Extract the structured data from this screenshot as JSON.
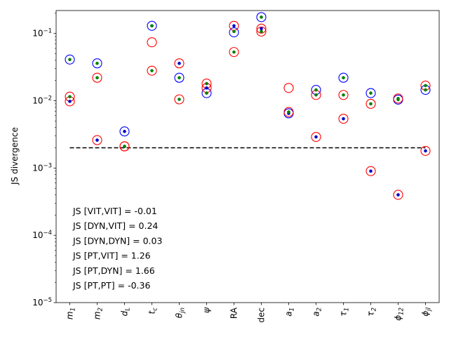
{
  "chart_data": {
    "type": "scatter",
    "ylabel": "JS divergence",
    "yscale": "log",
    "ylim": [
      1e-05,
      0.2
    ],
    "yticks": [
      {
        "value": 1e-05,
        "base": "10",
        "exp": "−5"
      },
      {
        "value": 0.0001,
        "base": "10",
        "exp": "−4"
      },
      {
        "value": 0.001,
        "base": "10",
        "exp": "−3"
      },
      {
        "value": 0.01,
        "base": "10",
        "exp": "−2"
      },
      {
        "value": 0.1,
        "base": "10",
        "exp": "−1"
      }
    ],
    "categories": [
      {
        "main": "m",
        "sub": "1"
      },
      {
        "main": "m",
        "sub": "2"
      },
      {
        "main": "d",
        "sub": "L"
      },
      {
        "main": "t",
        "sub": "c"
      },
      {
        "main": "θ",
        "sub": "jn"
      },
      {
        "main": "ψ",
        "sub": ""
      },
      {
        "main": "RA",
        "sub": "",
        "roman": true
      },
      {
        "main": "dec",
        "sub": "",
        "roman": true
      },
      {
        "main": "a",
        "sub": "1"
      },
      {
        "main": "a",
        "sub": "2"
      },
      {
        "main": "τ",
        "sub": "1"
      },
      {
        "main": "τ",
        "sub": "2"
      },
      {
        "main": "ϕ",
        "sub": "12"
      },
      {
        "main": "ϕ",
        "sub": "jl"
      }
    ],
    "threshold": {
      "value": 0.002,
      "style": "dashed",
      "color": "#000000"
    },
    "series": [
      {
        "marker": "open-circle",
        "color": "#0000ff",
        "values": [
          0.041,
          0.036,
          0.0035,
          0.13,
          0.022,
          0.013,
          0.104,
          0.175,
          0.0065,
          0.0145,
          0.022,
          0.013,
          0.0104,
          0.0145
        ]
      },
      {
        "marker": "open-circle",
        "color": "#ff0000",
        "values": [
          0.0115,
          0.022,
          0.0021,
          0.074,
          0.036,
          0.018,
          0.13,
          0.118,
          0.0155,
          0.0122,
          0.0122,
          0.009,
          0.0108,
          0.0168
        ]
      },
      {
        "marker": "open-circle",
        "color": "#ff0000",
        "values": [
          0.0098,
          0.0026,
          0.0021,
          0.028,
          0.0105,
          0.0155,
          0.053,
          0.107,
          0.0068,
          0.0029,
          0.0054,
          0.0009,
          0.0004,
          0.0018
        ]
      },
      {
        "marker": "dot",
        "color": "#0000cc",
        "values": [
          0.0098,
          0.0026,
          0.0035,
          0.13,
          0.036,
          0.0155,
          0.13,
          0.118,
          0.0065,
          0.0029,
          0.0054,
          0.0009,
          0.0004,
          0.0018
        ]
      },
      {
        "marker": "dot",
        "color": "#008000",
        "values": [
          0.0115,
          0.022,
          0.0021,
          0.028,
          0.022,
          0.018,
          0.107,
          0.175,
          0.0068,
          0.0122,
          0.0122,
          0.013,
          0.0108,
          0.0168
        ]
      },
      {
        "marker": "dot",
        "color": "#008000",
        "values": [
          0.041,
          0.036,
          0.0021,
          0.13,
          0.0105,
          0.013,
          0.053,
          0.107,
          0.0068,
          0.0145,
          0.022,
          0.009,
          0.0104,
          0.0145
        ]
      }
    ],
    "annotations": [
      "JS [VIT,VIT] = -0.01",
      "JS [DYN,VIT] = 0.24",
      "JS [DYN,DYN] = 0.03",
      "JS [PT,VIT] = 1.26",
      "JS [PT,DYN] = 1.66",
      "JS [PT,PT] = -0.36"
    ]
  }
}
